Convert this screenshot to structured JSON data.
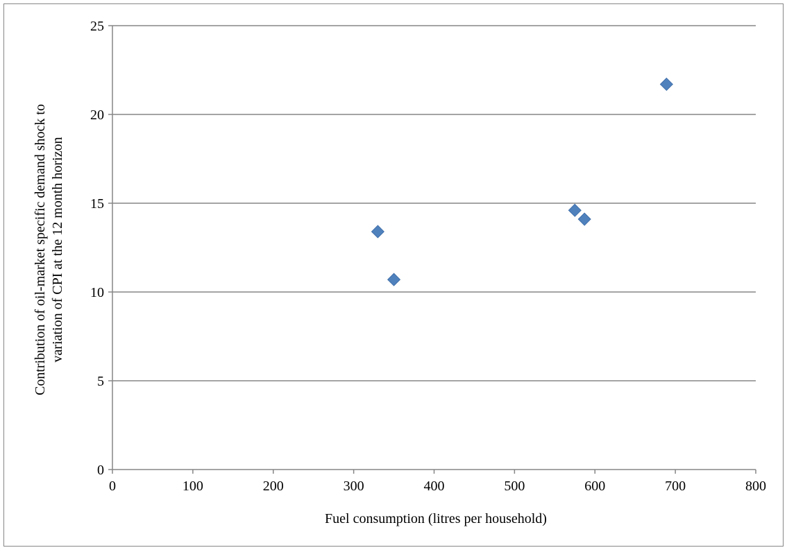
{
  "chart_data": {
    "type": "scatter",
    "title": "",
    "xlabel": "Fuel consumption  (litres per household)",
    "ylabel_lines": [
      "Contribution of oil-market specific demand shock to",
      "variation of CPI at the 12 month horizon"
    ],
    "xlim": [
      0,
      800
    ],
    "ylim": [
      0,
      25
    ],
    "x_ticks": [
      0,
      100,
      200,
      300,
      400,
      500,
      600,
      700,
      800
    ],
    "y_ticks": [
      0,
      5,
      10,
      15,
      20,
      25
    ],
    "grid": "horizontal",
    "legend": "none",
    "marker": "diamond",
    "series": [
      {
        "color": "#4F81BD",
        "points": [
          {
            "x": 330,
            "y": 13.4
          },
          {
            "x": 350,
            "y": 10.7
          },
          {
            "x": 575,
            "y": 14.6
          },
          {
            "x": 587,
            "y": 14.1
          },
          {
            "x": 689,
            "y": 21.7
          }
        ]
      }
    ]
  }
}
